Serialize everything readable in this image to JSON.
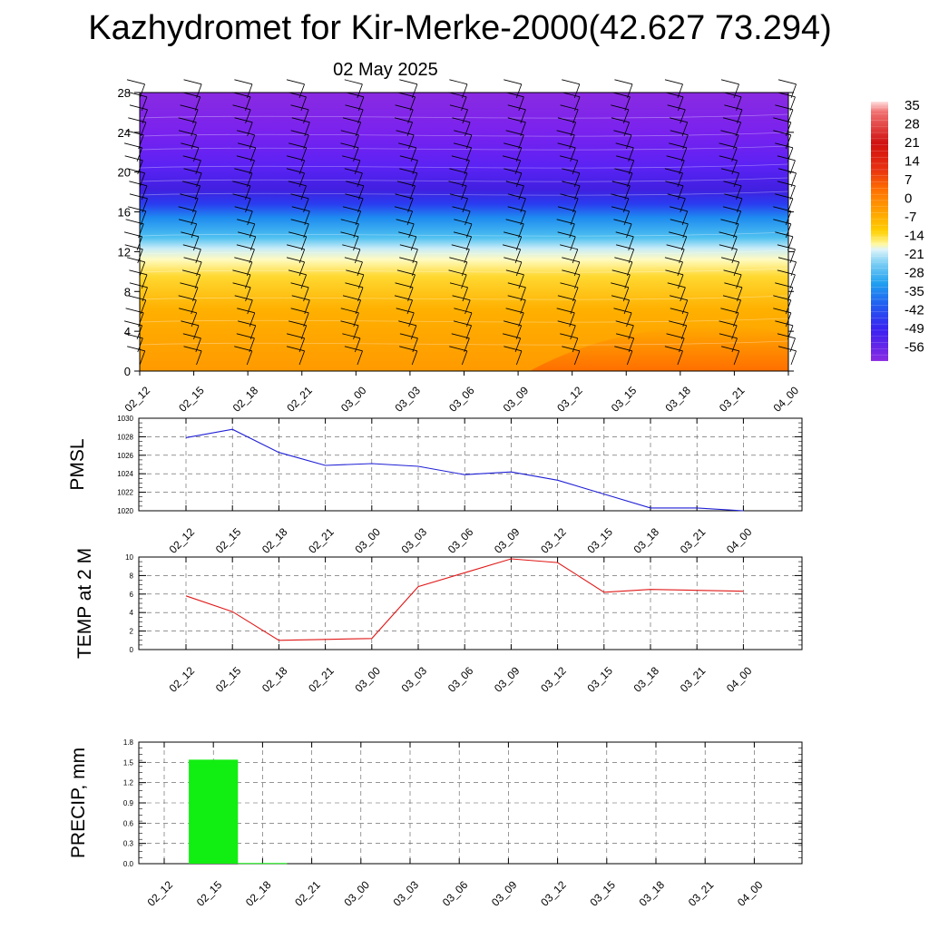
{
  "header": {
    "title": "Kazhydromet for Kir-Merke-2000(42.627 73.294)",
    "date": "02 May 2025"
  },
  "colors": {
    "pmsl_line": "#1f1fd6",
    "temp_line": "#e01818",
    "precip_bar": "#11ee11"
  },
  "chart_data": [
    {
      "type": "heatmap",
      "title": "",
      "x": [
        "02_12",
        "02_15",
        "02_18",
        "02_21",
        "03_00",
        "03_03",
        "03_06",
        "03_09",
        "03_12",
        "03_15",
        "03_18",
        "03_21",
        "04_00"
      ],
      "ylim": [
        0,
        28
      ],
      "yticks": [
        0,
        4,
        8,
        12,
        16,
        20,
        24,
        28
      ],
      "colorbar": {
        "labels": [
          "35",
          "28",
          "21",
          "14",
          "7",
          "0",
          "-7",
          "-14",
          "-21",
          "-28",
          "-35",
          "-42",
          "-49",
          "-56"
        ],
        "range": [
          -60,
          38
        ]
      },
      "overlay": "wind barbs"
    },
    {
      "type": "line",
      "ylabel": "PMSL",
      "x": [
        "02_12",
        "02_15",
        "02_18",
        "02_21",
        "03_00",
        "03_03",
        "03_06",
        "03_09",
        "03_12",
        "03_15",
        "03_18",
        "03_21",
        "04_00"
      ],
      "series": [
        {
          "values": [
            1027.9,
            1028.8,
            1026.3,
            1024.9,
            1025.1,
            1024.8,
            1023.9,
            1024.2,
            1023.3,
            1021.8,
            1020.3,
            1020.3,
            1020.0
          ]
        }
      ],
      "ylim": [
        1020,
        1030
      ],
      "yticks": [
        1020,
        1022,
        1024,
        1026,
        1028,
        1030
      ],
      "grid": true
    },
    {
      "type": "line",
      "ylabel": "TEMP at 2 M",
      "x": [
        "02_12",
        "02_15",
        "02_18",
        "02_21",
        "03_00",
        "03_03",
        "03_06",
        "03_09",
        "03_12",
        "03_15",
        "03_18",
        "03_21",
        "04_00"
      ],
      "series": [
        {
          "values": [
            5.8,
            4.1,
            1.0,
            1.1,
            1.2,
            6.8,
            8.3,
            9.8,
            9.4,
            6.2,
            6.5,
            6.4,
            6.3
          ]
        }
      ],
      "ylim": [
        0,
        10
      ],
      "yticks": [
        0,
        2,
        4,
        6,
        8,
        10
      ],
      "grid": true
    },
    {
      "type": "bar",
      "ylabel": "PRECIP, mm",
      "categories": [
        "02_12",
        "02_15",
        "02_18",
        "02_21",
        "03_00",
        "03_03",
        "03_06",
        "03_09",
        "03_12",
        "03_15",
        "03_18",
        "03_21",
        "04_00"
      ],
      "values": [
        0,
        1.54,
        0.01,
        0,
        0,
        0,
        0,
        0,
        0,
        0,
        0,
        0,
        0
      ],
      "ylim": [
        0,
        1.8
      ],
      "yticks": [
        "0.0",
        "0.3",
        "0.6",
        "0.9",
        "1.2",
        "1.5",
        "1.8"
      ],
      "grid": true
    }
  ]
}
